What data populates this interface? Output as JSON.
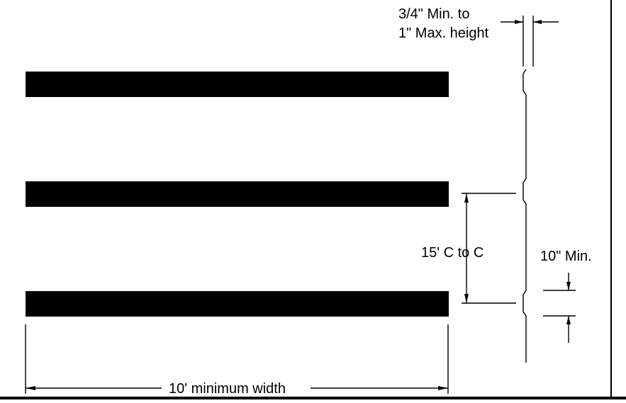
{
  "labels": {
    "height_line1": "3/4\" Min. to",
    "height_line2": "1\" Max. height",
    "spacing": "15' C to C",
    "min_gap": "10\" Min.",
    "width": "10' minimum width"
  },
  "colors": {
    "stripe": "#000000",
    "background": "#ffffff",
    "line": "#000000"
  }
}
